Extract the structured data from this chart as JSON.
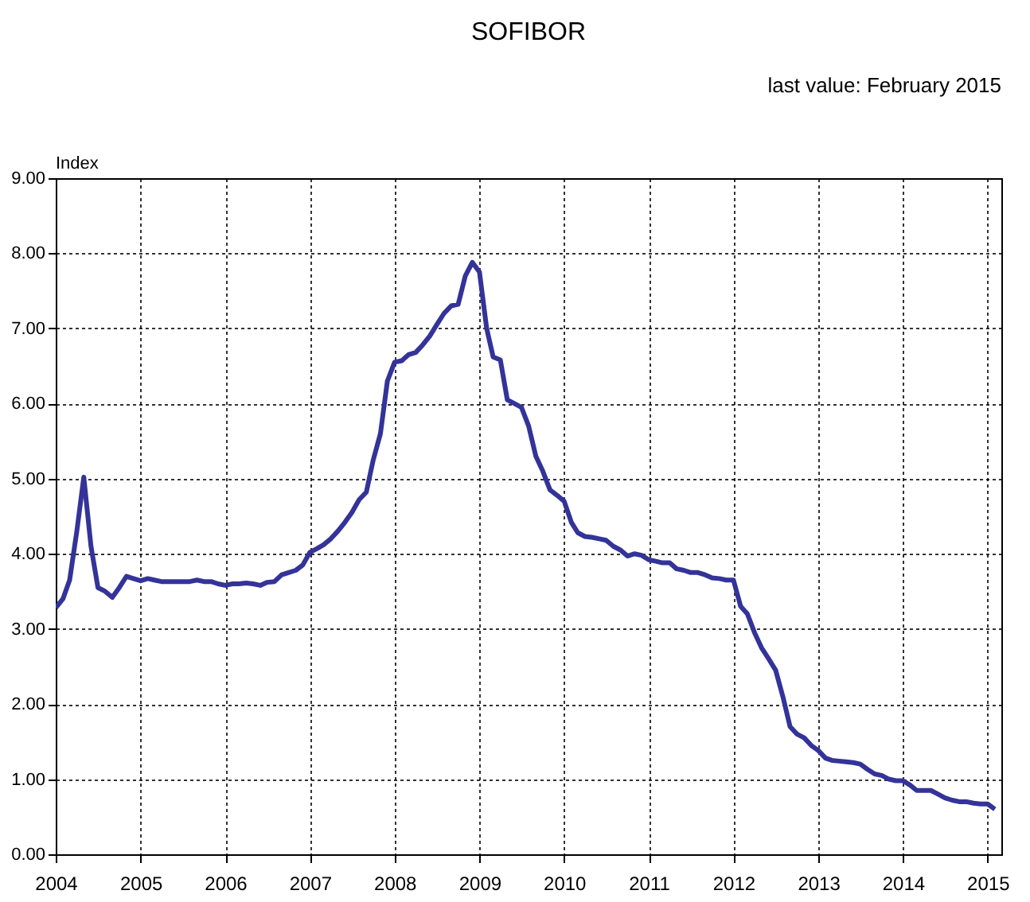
{
  "chart_data": {
    "type": "line",
    "title": "SOFIBOR",
    "ylabel": "Index",
    "annotations": [
      "last value: February 2015"
    ],
    "x": [
      "2004-01",
      "2004-02",
      "2004-03",
      "2004-04",
      "2004-05",
      "2004-06",
      "2004-07",
      "2004-08",
      "2004-09",
      "2004-10",
      "2004-11",
      "2004-12",
      "2005-01",
      "2005-02",
      "2005-03",
      "2005-04",
      "2005-05",
      "2005-06",
      "2005-07",
      "2005-08",
      "2005-09",
      "2005-10",
      "2005-11",
      "2005-12",
      "2006-01",
      "2006-02",
      "2006-03",
      "2006-04",
      "2006-05",
      "2006-06",
      "2006-07",
      "2006-08",
      "2006-09",
      "2006-10",
      "2006-11",
      "2006-12",
      "2007-01",
      "2007-02",
      "2007-03",
      "2007-04",
      "2007-05",
      "2007-06",
      "2007-07",
      "2007-08",
      "2007-09",
      "2007-10",
      "2007-11",
      "2007-12",
      "2008-01",
      "2008-02",
      "2008-03",
      "2008-04",
      "2008-05",
      "2008-06",
      "2008-07",
      "2008-08",
      "2008-09",
      "2008-10",
      "2008-11",
      "2008-12",
      "2009-01",
      "2009-02",
      "2009-03",
      "2009-04",
      "2009-05",
      "2009-06",
      "2009-07",
      "2009-08",
      "2009-09",
      "2009-10",
      "2009-11",
      "2009-12",
      "2010-01",
      "2010-02",
      "2010-03",
      "2010-04",
      "2010-05",
      "2010-06",
      "2010-07",
      "2010-08",
      "2010-09",
      "2010-10",
      "2010-11",
      "2010-12",
      "2011-01",
      "2011-02",
      "2011-03",
      "2011-04",
      "2011-05",
      "2011-06",
      "2011-07",
      "2011-08",
      "2011-09",
      "2011-10",
      "2011-11",
      "2011-12",
      "2012-01",
      "2012-02",
      "2012-03",
      "2012-04",
      "2012-05",
      "2012-06",
      "2012-07",
      "2012-08",
      "2012-09",
      "2012-10",
      "2012-11",
      "2012-12",
      "2013-01",
      "2013-02",
      "2013-03",
      "2013-04",
      "2013-05",
      "2013-06",
      "2013-07",
      "2013-08",
      "2013-09",
      "2013-10",
      "2013-11",
      "2013-12",
      "2014-01",
      "2014-02",
      "2014-03",
      "2014-04",
      "2014-05",
      "2014-06",
      "2014-07",
      "2014-08",
      "2014-09",
      "2014-10",
      "2014-11",
      "2014-12",
      "2015-01",
      "2015-02"
    ],
    "series": [
      {
        "color": "#333399",
        "values": [
          3.28,
          3.4,
          3.65,
          4.3,
          5.02,
          4.1,
          3.55,
          3.5,
          3.42,
          3.55,
          3.7,
          3.67,
          3.64,
          3.67,
          3.65,
          3.63,
          3.63,
          3.63,
          3.63,
          3.63,
          3.65,
          3.63,
          3.63,
          3.6,
          3.58,
          3.6,
          3.6,
          3.61,
          3.6,
          3.58,
          3.62,
          3.63,
          3.72,
          3.75,
          3.78,
          3.85,
          4.02,
          4.07,
          4.12,
          4.2,
          4.3,
          4.42,
          4.55,
          4.72,
          4.82,
          5.25,
          5.6,
          6.3,
          6.55,
          6.57,
          6.65,
          6.68,
          6.78,
          6.9,
          7.05,
          7.2,
          7.3,
          7.32,
          7.7,
          7.88,
          7.75,
          7.0,
          6.62,
          6.58,
          6.05,
          6.0,
          5.95,
          5.7,
          5.3,
          5.1,
          4.85,
          4.78,
          4.7,
          4.42,
          4.28,
          4.23,
          4.22,
          4.2,
          4.18,
          4.1,
          4.05,
          3.97,
          4.0,
          3.98,
          3.92,
          3.9,
          3.88,
          3.88,
          3.8,
          3.78,
          3.75,
          3.75,
          3.72,
          3.68,
          3.67,
          3.65,
          3.65,
          3.3,
          3.2,
          2.95,
          2.75,
          2.6,
          2.45,
          2.1,
          1.7,
          1.6,
          1.55,
          1.45,
          1.38,
          1.28,
          1.25,
          1.24,
          1.23,
          1.22,
          1.2,
          1.13,
          1.07,
          1.05,
          1.0,
          0.98,
          0.98,
          0.92,
          0.85,
          0.85,
          0.85,
          0.8,
          0.75,
          0.72,
          0.7,
          0.7,
          0.68,
          0.67,
          0.67,
          0.6
        ]
      }
    ],
    "xlim": [
      "2004-01",
      "2015-03"
    ],
    "xticks": [
      "2004",
      "2005",
      "2006",
      "2007",
      "2008",
      "2009",
      "2010",
      "2011",
      "2012",
      "2013",
      "2014",
      "2015"
    ],
    "ylim": [
      0,
      9
    ],
    "yticks": [
      {
        "value": 0,
        "label": "0.00"
      },
      {
        "value": 1,
        "label": "1.00"
      },
      {
        "value": 2,
        "label": "2.00"
      },
      {
        "value": 3,
        "label": "3.00"
      },
      {
        "value": 4,
        "label": "4.00"
      },
      {
        "value": 5,
        "label": "5.00"
      },
      {
        "value": 6,
        "label": "6.00"
      },
      {
        "value": 7,
        "label": "7.00"
      },
      {
        "value": 8,
        "label": "8.00"
      },
      {
        "value": 9,
        "label": "9.00"
      }
    ],
    "grid": true,
    "line_style": "solid"
  }
}
